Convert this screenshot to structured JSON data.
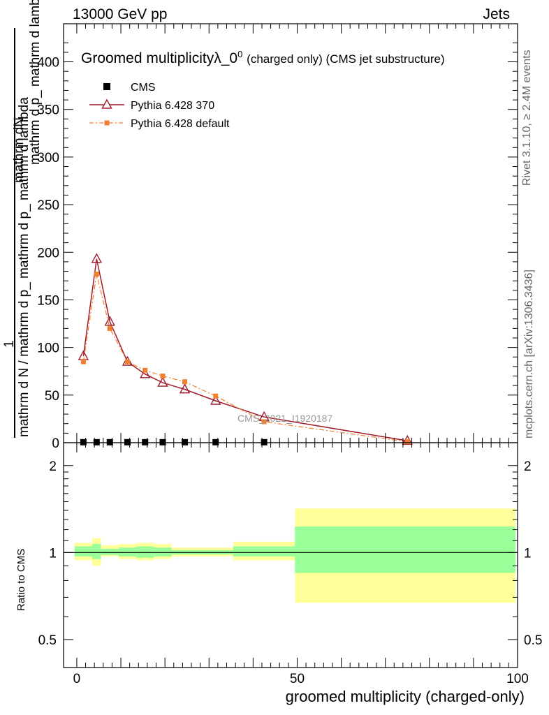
{
  "header": {
    "left": "13000 GeV pp",
    "right": "Jets"
  },
  "side_labels": {
    "rivet": "Rivet 3.1.10, ≥ 2.4M events",
    "mcplots": "mcplots.cern.ch [arXiv:1306.3436]"
  },
  "chart_data": [
    {
      "type": "line",
      "title_main": "Groomed multiplicityλ_0",
      "title_sup": "0",
      "title_rest": "(charged only) (CMS jet substructure)",
      "watermark": "CMS_2021_I1920187",
      "ylabel_numerator": "mathrm dN",
      "ylabel_denominator_left": "1",
      "ylabel_denominator": "mathrm d N / mathrm d p_ mathrm d p_ mathrm d lambda",
      "ylabel_top_fraction": "mathrm d p_ mathrm d lambda",
      "xlim": [
        -3,
        100
      ],
      "ylim": [
        0,
        440
      ],
      "yticks": [
        0,
        50,
        100,
        150,
        200,
        250,
        300,
        350,
        400
      ],
      "legend": [
        {
          "label": "CMS",
          "color": "#000000",
          "marker": "square"
        },
        {
          "label": "Pythia 6.428 370",
          "color": "#a01a2a",
          "marker": "triangle"
        },
        {
          "label": "Pythia 6.428 default",
          "color": "#f08030",
          "marker": "square-small"
        }
      ],
      "series": [
        {
          "name": "CMS",
          "color": "#000000",
          "x": [
            1.5,
            4.5,
            7.5,
            11.5,
            15.5,
            19.5,
            24.5,
            31.5,
            42.5
          ],
          "values": [
            0.5,
            0.5,
            0.5,
            0.5,
            0.5,
            0.5,
            0.5,
            0.5,
            0.5
          ]
        },
        {
          "name": "Pythia 6.428 370",
          "color": "#a01a2a",
          "x": [
            1.5,
            4.5,
            7.5,
            11.5,
            15.5,
            19.5,
            24.5,
            31.5,
            42.5,
            75
          ],
          "values": [
            91,
            193,
            127,
            85,
            72,
            63,
            56,
            44,
            27,
            2
          ]
        },
        {
          "name": "Pythia 6.428 default",
          "color": "#f08030",
          "x": [
            1.5,
            4.5,
            7.5,
            11.5,
            15.5,
            19.5,
            24.5,
            31.5,
            42.5,
            75
          ],
          "values": [
            85,
            177,
            120,
            85,
            76,
            70,
            64,
            49,
            22,
            1
          ]
        }
      ]
    },
    {
      "type": "area",
      "ylabel": "Ratio to CMS",
      "xlabel": "groomed multiplicity (charged-only)",
      "ylim": [
        0.4,
        2.4
      ],
      "yscale": "log",
      "yticks": [
        0.5,
        1,
        2
      ],
      "xticks": [
        0,
        50,
        100
      ],
      "bands": [
        {
          "x0": -0.5,
          "x1": 3.5,
          "yellow": [
            0.94,
            1.08
          ],
          "green": [
            0.97,
            1.05
          ]
        },
        {
          "x0": 3.5,
          "x1": 5.5,
          "yellow": [
            0.9,
            1.12
          ],
          "green": [
            0.95,
            1.07
          ]
        },
        {
          "x0": 5.5,
          "x1": 9.5,
          "yellow": [
            0.97,
            1.06
          ],
          "green": [
            0.98,
            1.03
          ]
        },
        {
          "x0": 9.5,
          "x1": 13.5,
          "yellow": [
            0.95,
            1.07
          ],
          "green": [
            0.97,
            1.04
          ]
        },
        {
          "x0": 13.5,
          "x1": 17.5,
          "yellow": [
            0.94,
            1.08
          ],
          "green": [
            0.96,
            1.05
          ]
        },
        {
          "x0": 17.5,
          "x1": 21.5,
          "yellow": [
            0.95,
            1.07
          ],
          "green": [
            0.97,
            1.04
          ]
        },
        {
          "x0": 21.5,
          "x1": 35.5,
          "yellow": [
            0.97,
            1.04
          ],
          "green": [
            0.985,
            1.02
          ]
        },
        {
          "x0": 35.5,
          "x1": 49.5,
          "yellow": [
            0.94,
            1.09
          ],
          "green": [
            0.97,
            1.05
          ]
        },
        {
          "x0": 49.5,
          "x1": 99.5,
          "yellow": [
            0.67,
            1.42
          ],
          "green": [
            0.85,
            1.23
          ]
        }
      ]
    }
  ],
  "colors": {
    "yellow_band": "#ffff99",
    "green_band": "#99ff99"
  }
}
